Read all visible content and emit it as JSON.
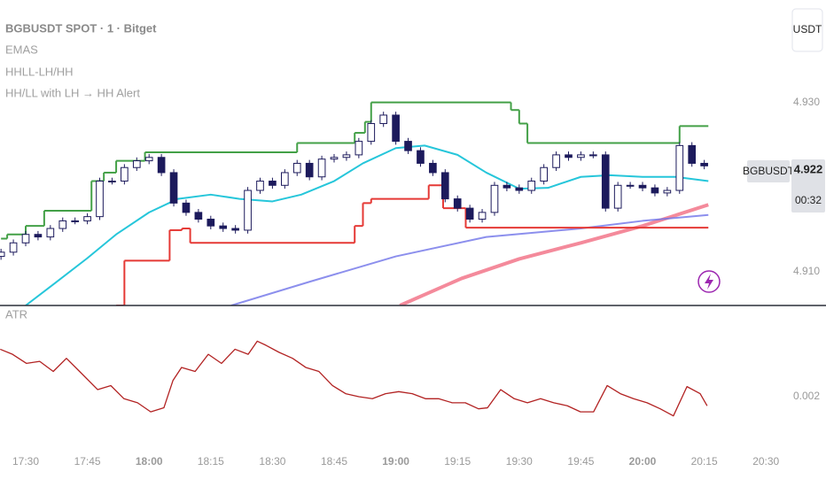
{
  "chart_data": [
    {
      "type": "candlestick",
      "title": "BGBUSDT SPOT · 1 · Bitget",
      "indicators": [
        "EMAS",
        "HHLL-LH/HH",
        "HH/LL with LH → HH Alert"
      ],
      "currency": "USDT",
      "symbol": "BGBUSDT",
      "last_price": 4.922,
      "countdown": "00:32",
      "xlim": [
        1043.75,
        1233.4
      ],
      "xticks": [
        {
          "value": 1050,
          "label": "17:30"
        },
        {
          "value": 1065,
          "label": "17:45"
        },
        {
          "value": 1080,
          "label": "18:00"
        },
        {
          "value": 1095,
          "label": "18:15"
        },
        {
          "value": 1110,
          "label": "18:30"
        },
        {
          "value": 1125,
          "label": "18:45"
        },
        {
          "value": 1140,
          "label": "19:00"
        },
        {
          "value": 1155,
          "label": "19:15"
        },
        {
          "value": 1170,
          "label": "19:30"
        },
        {
          "value": 1185,
          "label": "19:45"
        },
        {
          "value": 1200,
          "label": "20:00"
        },
        {
          "value": 1215,
          "label": "20:15"
        },
        {
          "value": 1230,
          "label": "20:30"
        }
      ],
      "ylim": [
        4.906,
        4.9421
      ],
      "yticks": [
        {
          "value": 4.93,
          "label": "4.930"
        },
        {
          "value": 4.91,
          "label": "4.910"
        }
      ],
      "grid": false,
      "candles": {
        "up_color": "#ffffff",
        "down_color": "#1c1a5c",
        "outline_color": "#1c1a5c",
        "x": [
          1044,
          1047,
          1050,
          1053,
          1056,
          1059,
          1062,
          1065,
          1068,
          1071,
          1074,
          1077,
          1080,
          1083,
          1086,
          1089,
          1092,
          1095,
          1098,
          1101,
          1104,
          1107,
          1110,
          1113,
          1116,
          1119,
          1122,
          1125,
          1128,
          1131,
          1134,
          1137,
          1140,
          1143,
          1146,
          1149,
          1152,
          1155,
          1158,
          1161,
          1164,
          1167,
          1170,
          1173,
          1176,
          1179,
          1182,
          1185,
          1188,
          1191,
          1194,
          1197,
          1200,
          1203,
          1206,
          1209,
          1212,
          1215
        ],
        "open": [
          4.9118,
          4.9123,
          4.9134,
          4.9144,
          4.9141,
          4.9151,
          4.916,
          4.916,
          4.9165,
          4.9207,
          4.9207,
          4.9223,
          4.9231,
          4.9235,
          4.9217,
          4.9181,
          4.917,
          4.9162,
          4.9154,
          4.9151,
          4.9149,
          4.9196,
          4.9207,
          4.9202,
          4.9217,
          4.9228,
          4.9212,
          4.9233,
          4.9235,
          4.9238,
          4.9254,
          4.9275,
          4.9285,
          4.9254,
          4.9243,
          4.9228,
          4.9217,
          4.9186,
          4.9175,
          4.9162,
          4.917,
          4.9202,
          4.9199,
          4.9196,
          4.9207,
          4.9223,
          4.9238,
          4.9235,
          4.9238,
          4.9238,
          4.9175,
          4.9202,
          4.9202,
          4.9199,
          4.9193,
          4.9196,
          4.9249,
          4.9228
        ],
        "high": [
          4.9127,
          4.9138,
          4.9148,
          4.9148,
          4.9155,
          4.9164,
          4.9164,
          4.9169,
          4.9211,
          4.9211,
          4.9227,
          4.9235,
          4.9239,
          4.9239,
          4.9221,
          4.9185,
          4.9174,
          4.9166,
          4.9158,
          4.9155,
          4.92,
          4.9211,
          4.9211,
          4.9221,
          4.9232,
          4.9232,
          4.9237,
          4.9239,
          4.9242,
          4.9258,
          4.9279,
          4.9289,
          4.9289,
          4.9258,
          4.9247,
          4.9232,
          4.9221,
          4.919,
          4.9179,
          4.9174,
          4.9206,
          4.9206,
          4.9203,
          4.9211,
          4.9227,
          4.9242,
          4.9242,
          4.9242,
          4.9242,
          4.9242,
          4.9206,
          4.9206,
          4.9206,
          4.9203,
          4.92,
          4.9253,
          4.9253,
          4.9232
        ],
        "low": [
          4.9114,
          4.9119,
          4.913,
          4.9137,
          4.9137,
          4.9147,
          4.9156,
          4.9156,
          4.9161,
          4.9203,
          4.9203,
          4.9219,
          4.9227,
          4.9213,
          4.9177,
          4.9166,
          4.9158,
          4.915,
          4.9147,
          4.9145,
          4.9145,
          4.9192,
          4.9198,
          4.9198,
          4.9213,
          4.9208,
          4.9208,
          4.9229,
          4.9231,
          4.9234,
          4.925,
          4.9271,
          4.925,
          4.9239,
          4.9224,
          4.9213,
          4.9182,
          4.9171,
          4.9158,
          4.9158,
          4.9166,
          4.9195,
          4.9192,
          4.9192,
          4.9203,
          4.9219,
          4.9231,
          4.9231,
          4.9234,
          4.9171,
          4.9171,
          4.9198,
          4.9195,
          4.9189,
          4.9189,
          4.9192,
          4.9224,
          4.9221
        ],
        "close": [
          4.9123,
          4.9134,
          4.9144,
          4.9141,
          4.9151,
          4.916,
          4.916,
          4.9165,
          4.9207,
          4.9207,
          4.9223,
          4.9231,
          4.9235,
          4.9217,
          4.9181,
          4.917,
          4.9162,
          4.9154,
          4.9151,
          4.9149,
          4.9196,
          4.9207,
          4.9202,
          4.9217,
          4.9228,
          4.9212,
          4.9233,
          4.9235,
          4.9238,
          4.9254,
          4.9275,
          4.9285,
          4.9254,
          4.9243,
          4.9228,
          4.9217,
          4.9186,
          4.9175,
          4.9162,
          4.917,
          4.9202,
          4.9199,
          4.9196,
          4.9207,
          4.9223,
          4.9238,
          4.9235,
          4.9238,
          4.9238,
          4.9175,
          4.9202,
          4.9202,
          4.9199,
          4.9193,
          4.9196,
          4.9249,
          4.9228,
          4.9225
        ]
      },
      "lines": [
        {
          "style": "line",
          "color": "#f0637a",
          "width": 4,
          "opacity": 0.75,
          "x": [
            1141,
            1156,
            1170,
            1185,
            1200,
            1216
          ],
          "values": [
            4.906,
            4.9092,
            4.9115,
            4.9134,
            4.9154,
            4.9179
          ]
        },
        {
          "style": "line",
          "color": "#6f73e8",
          "width": 2,
          "opacity": 0.8,
          "x": [
            1100,
            1119,
            1140,
            1162,
            1185,
            1200,
            1216
          ],
          "values": [
            4.906,
            4.9088,
            4.9118,
            4.9141,
            4.9151,
            4.916,
            4.9167
          ]
        },
        {
          "style": "line",
          "color": "#26c6da",
          "width": 2,
          "opacity": 1,
          "x": [
            1050,
            1057,
            1065,
            1072,
            1080,
            1087,
            1095,
            1102,
            1110,
            1117,
            1125,
            1132,
            1140,
            1147,
            1155,
            1162,
            1170,
            1177,
            1185,
            1192,
            1200,
            1208,
            1216
          ],
          "values": [
            4.906,
            4.9086,
            4.9116,
            4.9144,
            4.917,
            4.9186,
            4.9191,
            4.9186,
            4.9183,
            4.9191,
            4.9207,
            4.9228,
            4.9246,
            4.9249,
            4.9238,
            4.9217,
            4.9198,
            4.9199,
            4.9212,
            4.9214,
            4.9212,
            4.9212,
            4.9207
          ]
        },
        {
          "style": "step",
          "color": "#43a047",
          "width": 2,
          "opacity": 1,
          "x": [
            1044,
            1045.5,
            1050,
            1054.5,
            1066,
            1069,
            1072,
            1079,
            1116,
            1130,
            1132.5,
            1134,
            1168,
            1170,
            1172,
            1209,
            1216
          ],
          "values": [
            4.9139,
            4.9144,
            4.9154,
            4.9172,
            4.9207,
            4.9217,
            4.9231,
            4.9241,
            4.9252,
            4.9264,
            4.9277,
            4.93,
            4.9291,
            4.9275,
            4.9252,
            4.9272,
            4.9272
          ]
        },
        {
          "style": "step",
          "color": "#e53935",
          "width": 2,
          "opacity": 1,
          "x": [
            1072,
            1074,
            1085,
            1088,
            1090,
            1130,
            1132,
            1134,
            1148,
            1151.5,
            1157,
            1216
          ],
          "values": [
            4.906,
            4.9113,
            4.9149,
            4.9151,
            4.9134,
            4.9154,
            4.9181,
            4.9186,
            4.9202,
            4.9175,
            4.9152,
            4.9152
          ]
        }
      ]
    },
    {
      "type": "line",
      "title": "ATR",
      "color": "#b22222",
      "ylim": [
        0.0015,
        0.00286
      ],
      "yticks": [
        0.002
      ],
      "x": [
        1043.8,
        1046.8,
        1050.2,
        1053.4,
        1056.7,
        1059.9,
        1063.1,
        1067.5,
        1070.7,
        1073.9,
        1077.2,
        1080.4,
        1083.6,
        1085.8,
        1087.9,
        1091.2,
        1094.4,
        1097.6,
        1100.9,
        1104.1,
        1106.3,
        1108.4,
        1111.6,
        1114.9,
        1118.1,
        1121.3,
        1124.6,
        1127.8,
        1131.0,
        1134.3,
        1137.5,
        1140.7,
        1144.0,
        1147.2,
        1150.4,
        1153.7,
        1156.9,
        1160.1,
        1162.3,
        1165.5,
        1168.8,
        1172.0,
        1175.2,
        1178.4,
        1181.7,
        1184.9,
        1188.1,
        1191.4,
        1194.6,
        1197.8,
        1201.1,
        1204.3,
        1207.5,
        1210.8,
        1214.0,
        1215.7
      ],
      "values": [
        0.00247,
        0.00242,
        0.00233,
        0.00235,
        0.00225,
        0.00238,
        0.00225,
        0.00207,
        0.00211,
        0.00198,
        0.00194,
        0.00185,
        0.00189,
        0.00216,
        0.00229,
        0.00225,
        0.00242,
        0.00233,
        0.00247,
        0.00242,
        0.00255,
        0.00251,
        0.00244,
        0.00238,
        0.00229,
        0.00225,
        0.00211,
        0.00203,
        0.002,
        0.00198,
        0.00203,
        0.00205,
        0.00203,
        0.00198,
        0.00198,
        0.00194,
        0.00194,
        0.00188,
        0.00189,
        0.00207,
        0.00198,
        0.00194,
        0.00198,
        0.00194,
        0.00191,
        0.00185,
        0.00185,
        0.00211,
        0.00203,
        0.00198,
        0.00194,
        0.00188,
        0.00181,
        0.0021,
        0.00203,
        0.00191
      ]
    }
  ]
}
